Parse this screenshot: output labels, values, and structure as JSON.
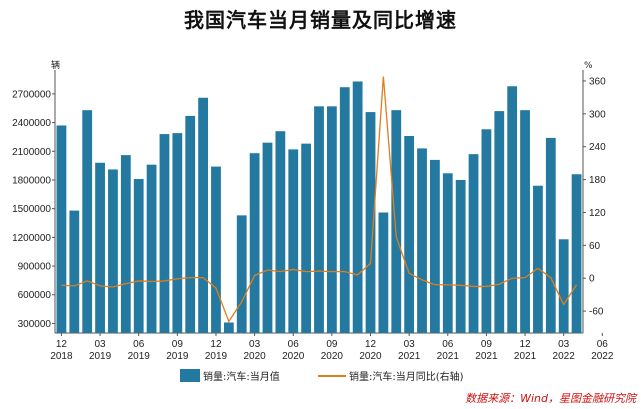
{
  "title": "我国汽车当月销量及同比增速",
  "chart_data": {
    "type": "bar+line",
    "title": "我国汽车当月销量及同比增速",
    "left_unit": "辆",
    "right_unit": "%",
    "ylim_left": [
      200000,
      2950000
    ],
    "yticks_left": [
      300000,
      600000,
      900000,
      1200000,
      1500000,
      1800000,
      2100000,
      2400000,
      2700000
    ],
    "ylim_right": [
      -100,
      380
    ],
    "yticks_right": [
      -60,
      0,
      60,
      120,
      180,
      240,
      300,
      360
    ],
    "x_tick_labels": [
      {
        "index": 0,
        "month": "12",
        "year": "2018"
      },
      {
        "index": 3,
        "month": "03",
        "year": "2019"
      },
      {
        "index": 6,
        "month": "06",
        "year": "2019"
      },
      {
        "index": 9,
        "month": "09",
        "year": "2019"
      },
      {
        "index": 12,
        "month": "12",
        "year": "2019"
      },
      {
        "index": 15,
        "month": "03",
        "year": "2020"
      },
      {
        "index": 18,
        "month": "06",
        "year": "2020"
      },
      {
        "index": 21,
        "month": "09",
        "year": "2020"
      },
      {
        "index": 24,
        "month": "12",
        "year": "2020"
      },
      {
        "index": 27,
        "month": "03",
        "year": "2021"
      },
      {
        "index": 30,
        "month": "06",
        "year": "2021"
      },
      {
        "index": 33,
        "month": "09",
        "year": "2021"
      },
      {
        "index": 36,
        "month": "12",
        "year": "2021"
      },
      {
        "index": 39,
        "month": "03",
        "year": "2022"
      },
      {
        "index": 42,
        "month": "06",
        "year": "2022"
      }
    ],
    "series": [
      {
        "name": "销量:汽车:当月值",
        "type": "bar",
        "axis": "left",
        "color": "#23799f",
        "values": [
          2370000,
          1480000,
          2530000,
          1980000,
          1910000,
          2060000,
          1810000,
          1960000,
          2280000,
          2290000,
          2470000,
          2660000,
          1940000,
          310000,
          1430000,
          2080000,
          2190000,
          2310000,
          2120000,
          2180000,
          2570000,
          2570000,
          2770000,
          2830000,
          2510000,
          1460000,
          2530000,
          2260000,
          2130000,
          2010000,
          1870000,
          1800000,
          2070000,
          2330000,
          2520000,
          2780000,
          2530000,
          1740000,
          2240000,
          1180000,
          1860000
        ]
      },
      {
        "name": "销量:汽车:当月同比(右轴)",
        "type": "line",
        "axis": "right",
        "color": "#e07d1c",
        "values": [
          -13,
          -14,
          -5,
          -14,
          -16,
          -10,
          -5,
          -6,
          -5,
          -1,
          1,
          1,
          -18,
          -79,
          -43,
          5,
          15,
          12,
          16,
          12,
          13,
          12,
          12,
          6,
          27,
          368,
          75,
          9,
          -3,
          -12,
          -12,
          -13,
          -15,
          -15,
          -11,
          0,
          1,
          18,
          1,
          -48,
          -12
        ]
      }
    ],
    "legend": [
      "销量:汽车:当月值",
      "销量:汽车:当月同比(右轴)"
    ],
    "legend_position": "bottom",
    "grid": false
  },
  "source": "数据来源：Wind，星图金融研究院"
}
